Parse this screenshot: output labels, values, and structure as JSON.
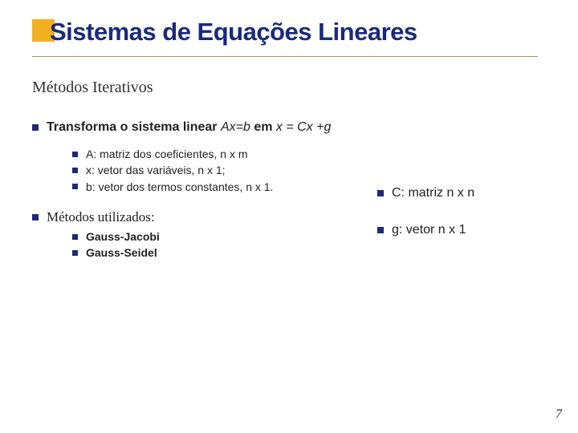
{
  "title": "Sistemas de Equações Lineares",
  "subtitle": "Métodos Iterativos",
  "main": {
    "line1_prefix": "Transforma o sistema linear  ",
    "line1_eq1": "Ax=b",
    "line1_mid": "  em ",
    "line1_eq2": "x = Cx +g",
    "sub": {
      "a": "A: matriz dos coeficientes, n x m",
      "x": "x: vetor das variáveis, n x 1;",
      "b": "b: vetor dos termos constantes, n x 1."
    },
    "methods_label": "Métodos utilizados:",
    "methods": {
      "m1": "Gauss-Jacobi",
      "m2": "Gauss-Seidel"
    }
  },
  "annot": {
    "c": "C: matriz n x n",
    "g": "g: vetor n x 1"
  },
  "page": "7",
  "colors": {
    "accent_square": "#f0b020",
    "bullet": "#1a2a7a",
    "title": "#1a2a7a",
    "underline": "#b09060"
  }
}
